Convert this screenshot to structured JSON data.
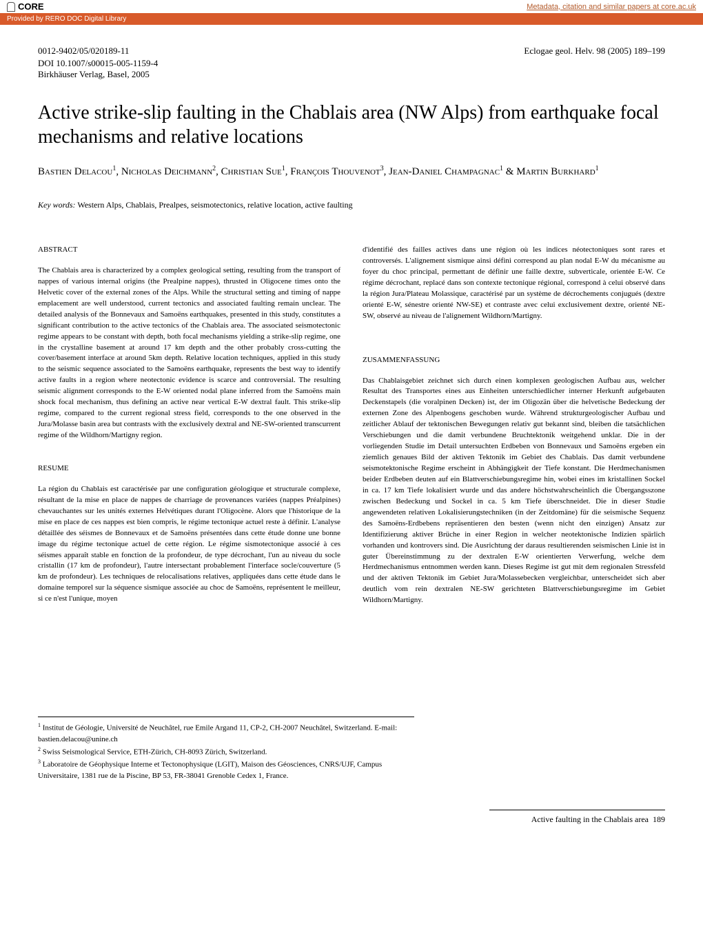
{
  "banner": {
    "core_label": "CORE",
    "metadata_link": "Metadata, citation and similar papers at core.ac.uk",
    "provided_by": "Provided by RERO DOC Digital Library"
  },
  "header": {
    "issn_line": "0012-9402/05/020189-11",
    "journal_ref": "Eclogae geol. Helv. 98 (2005) 189–199",
    "doi": "DOI 10.1007/s00015-005-1159-4",
    "publisher": "Birkhäuser Verlag, Basel, 2005"
  },
  "title": "Active strike-slip faulting in the Chablais area (NW Alps) from earthquake focal mechanisms and relative locations",
  "authors_html": "Bastien Delacou<sup>1</sup>, Nicholas Deichmann<sup>2</sup>, Christian Sue<sup>1</sup>, François Thouvenot<sup>3</sup>, Jean-Daniel Champagnac<sup>1</sup> & Martin Burkhard<sup>1</sup>",
  "keywords": {
    "label": "Key words:",
    "text": " Western Alps, Chablais, Prealpes, seismotectonics, relative location, active faulting"
  },
  "abstract": {
    "head": "ABSTRACT",
    "text": "The Chablais area is characterized by a complex geological setting, resulting from the transport of nappes of various internal origins (the Prealpine nappes), thrusted in Oligocene times onto the Helvetic cover of the external zones of the Alps. While the structural setting and timing of nappe emplacement are well understood, current tectonics and associated faulting remain unclear. The detailed analysis of the Bonnevaux and Samoëns earthquakes, presented in this study, constitutes a significant contribution to the active tectonics of the Chablais area. The associated seismotectonic regime appears to be constant with depth, both focal mechanisms yielding a strike-slip regime, one in the crystalline basement at around 17 km depth and the other probably cross-cutting the cover/basement interface at around 5km depth. Relative location techniques, applied in this study to the seismic sequence associated to the Samoëns earthquake, represents the best way to identify active faults in a region where neotectonic evidence is scarce and controversial. The resulting seismic alignment corresponds to the E-W oriented nodal plane inferred from the Samoëns main shock focal mechanism, thus defining an active near vertical E-W dextral fault. This strike-slip regime, compared to the current regional stress field, corresponds to the one observed in the Jura/Molasse basin area but contrasts with the exclusively dextral and NE-SW-oriented transcurrent regime of the Wildhorn/Martigny region."
  },
  "resume": {
    "head": "RESUME",
    "text": "La région du Chablais est caractérisée par une configuration géologique et structurale complexe, résultant de la mise en place de nappes de charriage de provenances variées (nappes Préalpines) chevauchantes sur les unités externes Helvétiques durant l'Oligocène. Alors que l'historique de la mise en place de ces nappes est bien compris, le régime tectonique actuel reste à définir. L'analyse détaillée des séismes de Bonnevaux et de Samoëns présentées dans cette étude donne une bonne image du régime tectonique actuel de cette région. Le régime sismotectonique associé à ces séismes apparaît stable en fonction de la profondeur, de type décrochant, l'un au niveau du socle cristallin (17 km de profondeur), l'autre intersectant probablement l'interface socle/couverture (5 km de profondeur). Les techniques de relocalisations relatives, appliquées dans cette étude dans le domaine temporel sur la séquence sismique associée au choc de Samoëns, représentent le meilleur, si ce n'est l'unique, moyen"
  },
  "resume_col2_intro": "d'identifié des failles actives dans une région où les indices néotectoniques sont rares et controversés. L'alignement sismique ainsi défini correspond au plan nodal E-W du mécanisme au foyer du choc principal, permettant de définir une faille dextre, subverticale, orientée E-W. Ce régime décrochant, replacé dans son contexte tectonique régional, correspond à celui observé dans la région Jura/Plateau Molassique, caractérisé par un système de décrochements conjugués (dextre orienté E-W, sénestre orienté NW-SE) et contraste avec celui exclusivement dextre, orienté NE-SW, observé au niveau de l'alignement Wildhorn/Martigny.",
  "zusammenfassung": {
    "head": "ZUSAMMENFASSUNG",
    "text": "Das Chablaisgebiet zeichnet sich durch einen komplexen geologischen Aufbau aus, welcher Resultat des Transportes eines aus Einheiten unterschiedlicher interner Herkunft aufgebauten Deckenstapels (die voralpinen Decken) ist, der im Oligozän über die helvetische Bedeckung der externen Zone des Alpenbogens geschoben wurde. Während strukturgeologischer Aufbau und zeitlicher Ablauf der tektonischen Bewegungen relativ gut bekannt sind, bleiben die tatsächlichen Verschiebungen und die damit verbundene Bruchtektonik weitgehend unklar. Die in der vorliegenden Studie im Detail untersuchten Erdbeben von Bonnevaux und Samoëns ergeben ein ziemlich genaues Bild der aktiven Tektonik im Gebiet des Chablais. Das damit verbundene seismotektonische Regime erscheint in Abhängigkeit der Tiefe konstant. Die Herdmechanismen beider Erdbeben deuten auf ein Blattverschiebungsregime hin, wobei eines im kristallinen Sockel in ca. 17 km Tiefe lokalisiert wurde und das andere höchstwahrscheinlich die Übergangsszone zwischen Bedeckung und Sockel in ca. 5 km Tiefe überschneidet. Die in dieser Studie angewendeten relativen Lokalisierungstechniken (in der Zeitdomäne) für die seismische Sequenz des Samoëns-Erdbebens repräsentieren den besten (wenn nicht den einzigen) Ansatz zur Identifizierung aktiver Brüche in einer Region in welcher neotektonische Indizien spärlich vorhanden und kontrovers sind. Die Ausrichtung der daraus resultierenden seismischen Linie ist in guter Übereinstimmung zu der dextralen E-W orientierten Verwerfung, welche dem Herdmechanismus entnommen werden kann. Dieses Regime ist gut mit dem regionalen Stressfeld und der aktiven Tektonik im Gebiet Jura/Molassebecken vergleichbar, unterscheidet sich aber deutlich vom rein dextralen NE-SW gerichteten Blattverschiebungsregime im Gebiet Wildhorn/Martigny."
  },
  "affiliations": [
    "Institut de Géologie, Université de Neuchâtel, rue Emile Argand 11, CP-2, CH-2007 Neuchâtel, Switzerland. E-mail: bastien.delacou@unine.ch",
    "Swiss Seismological Service, ETH-Zürich, CH-8093 Zürich, Switzerland.",
    "Laboratoire de Géophysique Interne et Tectonophysique (LGIT), Maison des Géosciences, CNRS/UJF, Campus Universitaire, 1381 rue de la Piscine, BP 53, FR-38041 Grenoble Cedex 1, France."
  ],
  "footer": {
    "running_head": "Active faulting in the Chablais area",
    "page_number": "189"
  },
  "colors": {
    "banner_bg": "#d85a2a",
    "link_color": "#b35a2a",
    "text": "#000000",
    "background": "#ffffff"
  },
  "typography": {
    "title_fontsize": 28,
    "body_fontsize": 11,
    "author_fontsize": 15,
    "meta_fontsize": 13
  }
}
